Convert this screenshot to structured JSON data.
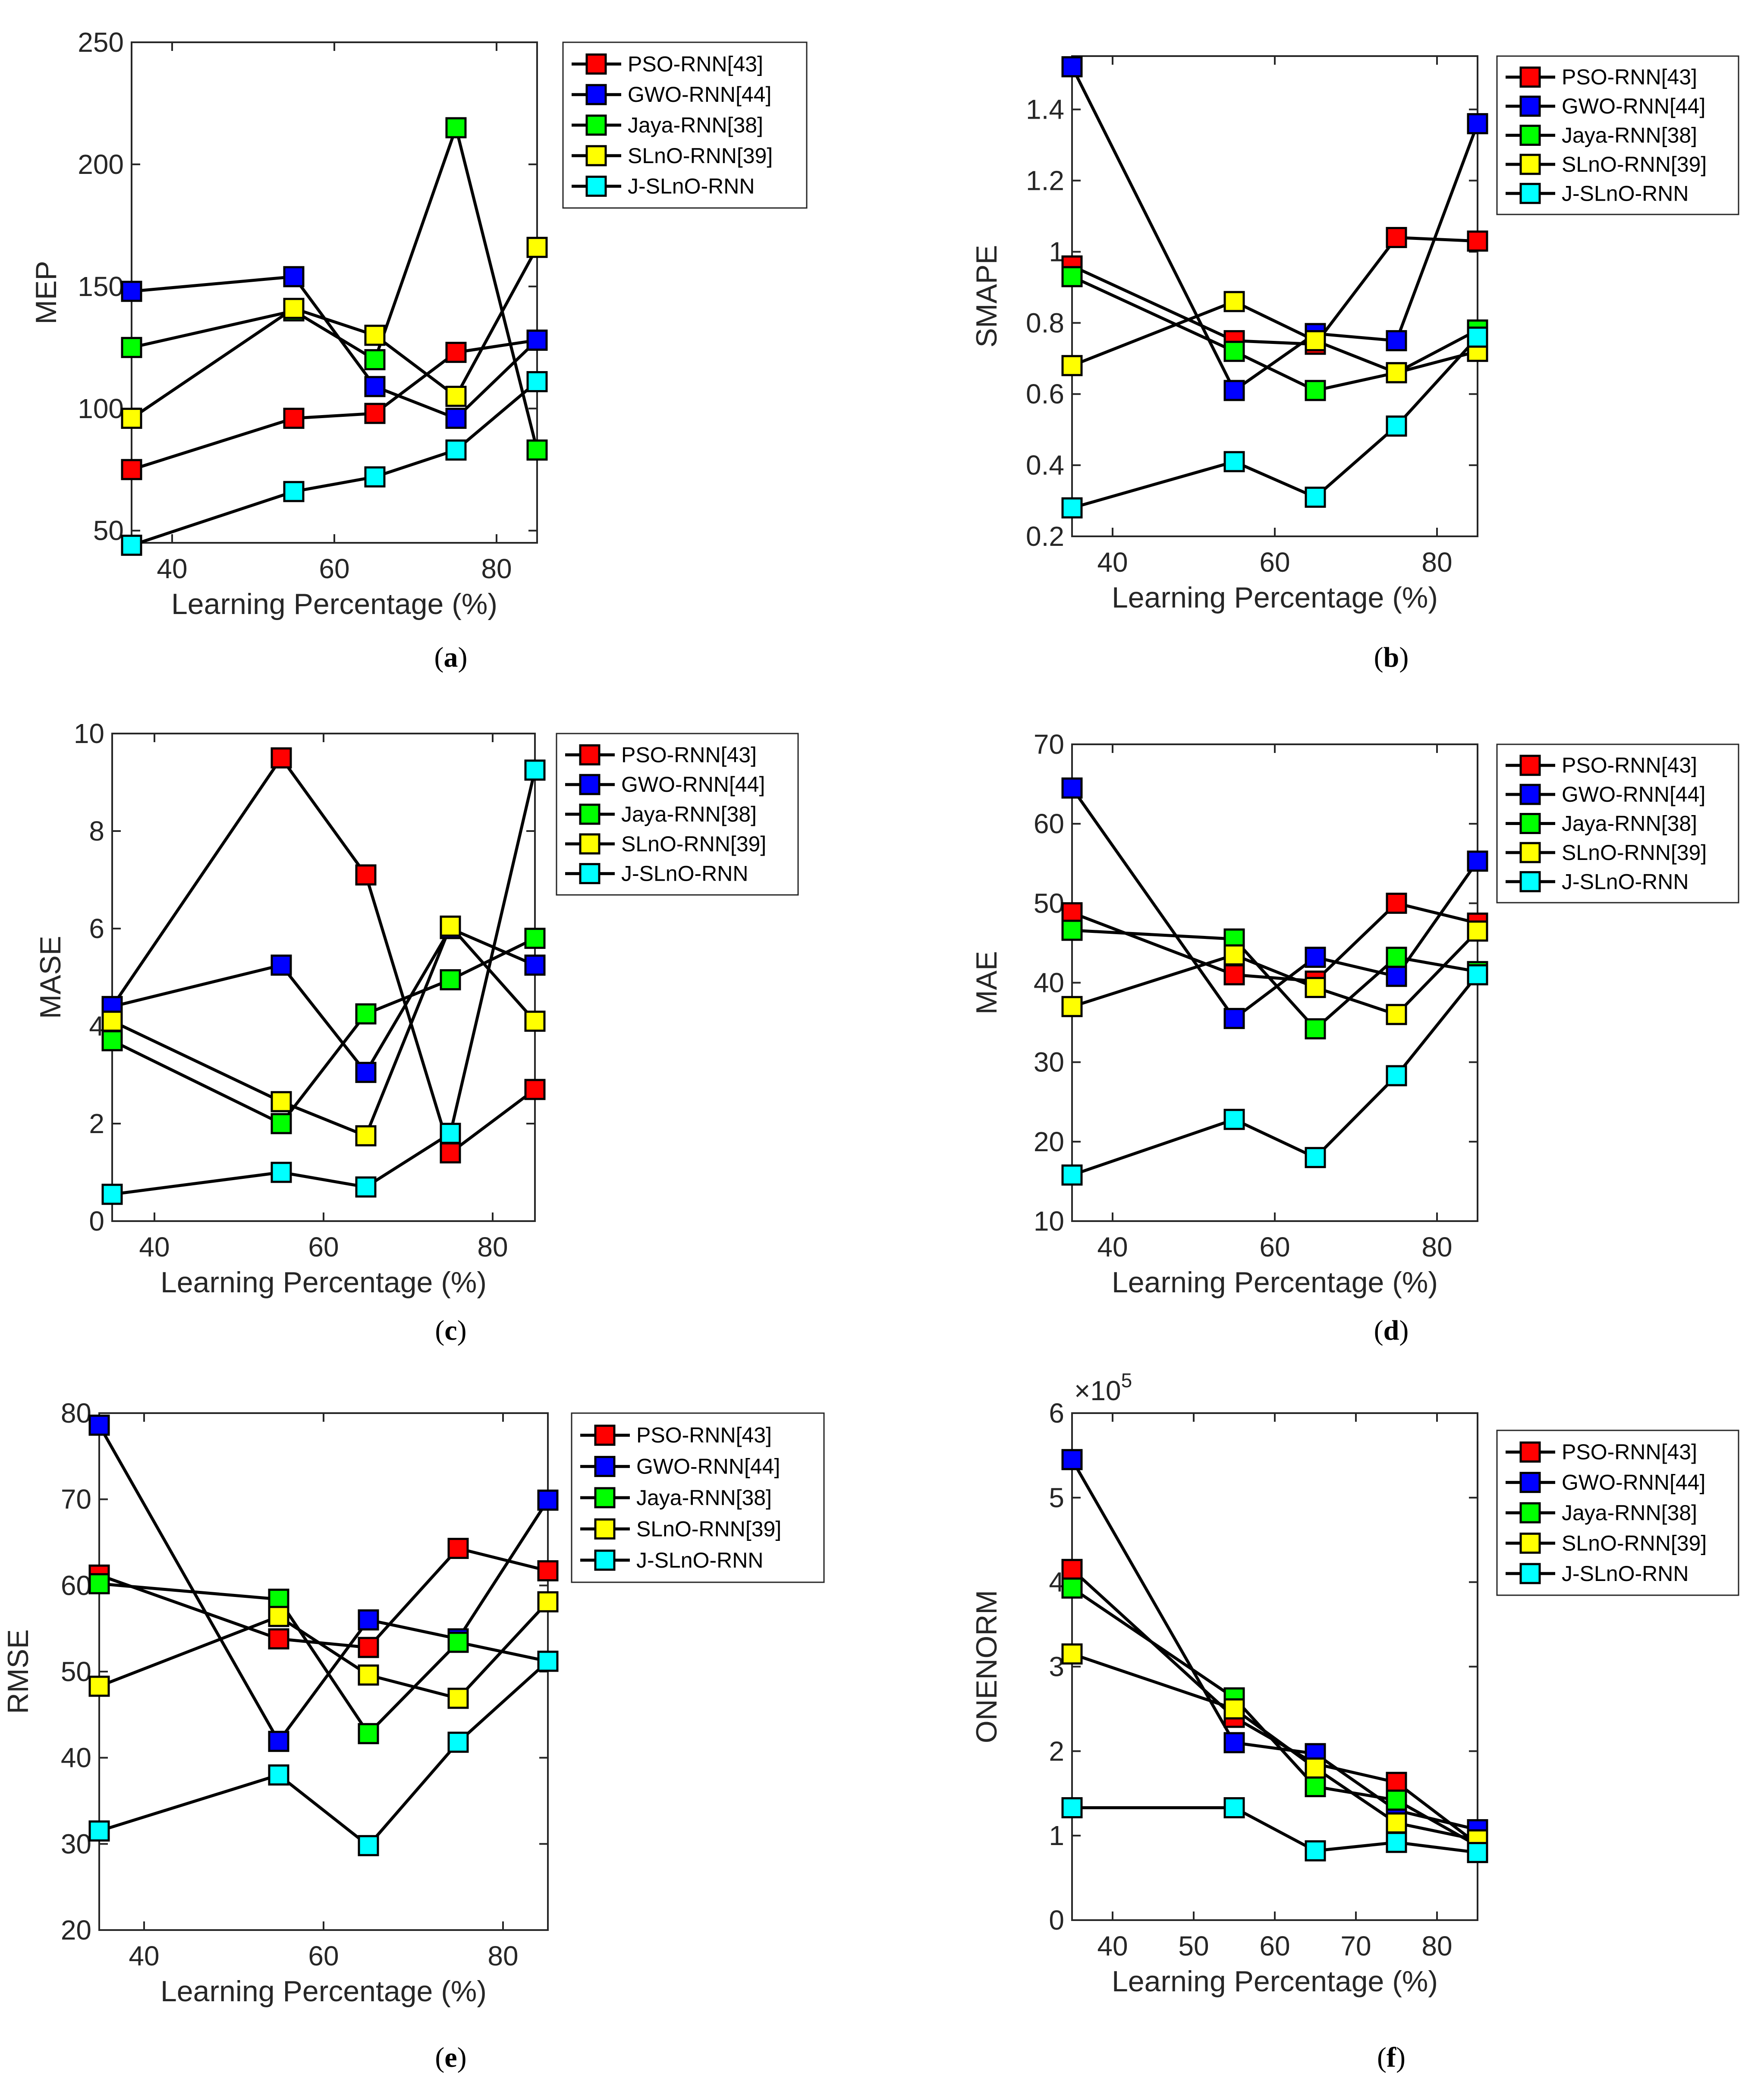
{
  "figure": {
    "series_names": [
      "PSO-RNN[43]",
      "GWO-RNN[44]",
      "Jaya-RNN[38]",
      "SLnO-RNN[39]",
      "J-SLnO-RNN"
    ],
    "series_colors": [
      "#ff0000",
      "#0000ff",
      "#00ff00",
      "#ffff00",
      "#00ffff"
    ]
  },
  "chart_data": [
    {
      "id": "a",
      "type": "line",
      "caption": "a",
      "xlabel": "Learning Percentage (%)",
      "ylabel": "MEP",
      "xlim": [
        35,
        85
      ],
      "ylim": [
        45,
        250
      ],
      "xticks": [
        40,
        60,
        80
      ],
      "yticks": [
        50,
        100,
        150,
        200,
        250
      ],
      "yticklabels": [
        "50",
        "100",
        "150",
        "200",
        "250"
      ],
      "x": [
        35,
        55,
        65,
        75,
        85
      ],
      "series": [
        {
          "name": "PSO-RNN[43]",
          "values": [
            75,
            96,
            98,
            123,
            128
          ]
        },
        {
          "name": "GWO-RNN[44]",
          "values": [
            148,
            154,
            109,
            96,
            128
          ]
        },
        {
          "name": "Jaya-RNN[38]",
          "values": [
            125,
            140,
            120,
            215,
            83
          ]
        },
        {
          "name": "SLnO-RNN[39]",
          "values": [
            96,
            141,
            130,
            105,
            166
          ]
        },
        {
          "name": "J-SLnO-RNN",
          "values": [
            44,
            66,
            72,
            83,
            111
          ]
        }
      ]
    },
    {
      "id": "b",
      "type": "line",
      "caption": "b",
      "xlabel": "Learning Percentage (%)",
      "ylabel": "SMAPE",
      "xlim": [
        35,
        85
      ],
      "ylim": [
        0.2,
        1.55
      ],
      "xticks": [
        40,
        60,
        80
      ],
      "yticks": [
        0.2,
        0.4,
        0.6,
        0.8,
        1.0,
        1.2,
        1.4
      ],
      "yticklabels": [
        "0.2",
        "0.4",
        "0.6",
        "0.8",
        "1",
        "1.2",
        "1.4"
      ],
      "x": [
        35,
        55,
        65,
        75,
        85
      ],
      "series": [
        {
          "name": "PSO-RNN[43]",
          "values": [
            0.96,
            0.75,
            0.74,
            1.04,
            1.03
          ]
        },
        {
          "name": "GWO-RNN[44]",
          "values": [
            1.52,
            0.61,
            0.77,
            0.75,
            1.36
          ]
        },
        {
          "name": "Jaya-RNN[38]",
          "values": [
            0.93,
            0.72,
            0.61,
            0.66,
            0.78
          ]
        },
        {
          "name": "SLnO-RNN[39]",
          "values": [
            0.68,
            0.86,
            0.75,
            0.66,
            0.72
          ]
        },
        {
          "name": "J-SLnO-RNN",
          "values": [
            0.28,
            0.41,
            0.31,
            0.51,
            0.76
          ]
        }
      ]
    },
    {
      "id": "c",
      "type": "line",
      "caption": "c",
      "xlabel": "Learning Percentage (%)",
      "ylabel": "MASE",
      "xlim": [
        35,
        85
      ],
      "ylim": [
        0,
        10
      ],
      "xticks": [
        40,
        60,
        80
      ],
      "yticks": [
        0,
        2,
        4,
        6,
        8,
        10
      ],
      "yticklabels": [
        "0",
        "2",
        "4",
        "6",
        "8",
        "10"
      ],
      "x": [
        35,
        55,
        65,
        75,
        85
      ],
      "series": [
        {
          "name": "PSO-RNN[43]",
          "values": [
            4.4,
            9.5,
            7.1,
            1.4,
            2.7
          ]
        },
        {
          "name": "GWO-RNN[44]",
          "values": [
            4.4,
            5.25,
            3.05,
            6.0,
            5.25
          ]
        },
        {
          "name": "Jaya-RNN[38]",
          "values": [
            3.7,
            2.0,
            4.25,
            4.95,
            5.8
          ]
        },
        {
          "name": "SLnO-RNN[39]",
          "values": [
            4.1,
            2.45,
            1.75,
            6.05,
            4.1
          ]
        },
        {
          "name": "J-SLnO-RNN",
          "values": [
            0.55,
            1.0,
            0.7,
            1.8,
            9.25
          ]
        }
      ]
    },
    {
      "id": "d",
      "type": "line",
      "caption": "d",
      "xlabel": "Learning Percentage (%)",
      "ylabel": "MAE",
      "xlim": [
        35,
        85
      ],
      "ylim": [
        10,
        70
      ],
      "xticks": [
        40,
        60,
        80
      ],
      "yticks": [
        10,
        20,
        30,
        40,
        50,
        60,
        70
      ],
      "yticklabels": [
        "10",
        "20",
        "30",
        "40",
        "50",
        "60",
        "70"
      ],
      "x": [
        35,
        55,
        65,
        75,
        85
      ],
      "series": [
        {
          "name": "PSO-RNN[43]",
          "values": [
            48.8,
            41,
            40.2,
            50,
            47.5
          ]
        },
        {
          "name": "GWO-RNN[44]",
          "values": [
            64.5,
            35.5,
            43.2,
            40.8,
            55.3
          ]
        },
        {
          "name": "Jaya-RNN[38]",
          "values": [
            46.6,
            45.5,
            34.2,
            43.2,
            41.4
          ]
        },
        {
          "name": "SLnO-RNN[39]",
          "values": [
            37,
            43.5,
            39.4,
            36,
            46.5
          ]
        },
        {
          "name": "J-SLnO-RNN",
          "values": [
            15.8,
            22.8,
            18,
            28.3,
            41
          ]
        }
      ]
    },
    {
      "id": "e",
      "type": "line",
      "caption": "e",
      "xlabel": "Learning Percentage (%)",
      "ylabel": "RMSE",
      "xlim": [
        35,
        85
      ],
      "ylim": [
        20,
        80
      ],
      "xticks": [
        40,
        60,
        80
      ],
      "yticks": [
        20,
        30,
        40,
        50,
        60,
        70,
        80
      ],
      "yticklabels": [
        "20",
        "30",
        "40",
        "50",
        "60",
        "70",
        "80"
      ],
      "x": [
        35,
        55,
        65,
        75,
        85
      ],
      "series": [
        {
          "name": "PSO-RNN[43]",
          "values": [
            61.2,
            53.8,
            52.8,
            64.3,
            61.7
          ]
        },
        {
          "name": "GWO-RNN[44]",
          "values": [
            78.6,
            41.9,
            56,
            53.8,
            69.9
          ]
        },
        {
          "name": "Jaya-RNN[38]",
          "values": [
            60.2,
            58.4,
            42.8,
            53.4,
            51.2
          ]
        },
        {
          "name": "SLnO-RNN[39]",
          "values": [
            48.3,
            56.4,
            49.6,
            46.9,
            58.1
          ]
        },
        {
          "name": "J-SLnO-RNN",
          "values": [
            31.5,
            38,
            29.8,
            41.8,
            51.2
          ]
        }
      ]
    },
    {
      "id": "f",
      "type": "line",
      "caption": "f",
      "xlabel": "Learning Percentage (%)",
      "ylabel": "ONENORM",
      "exponent_base": "×10",
      "exponent_power": "5",
      "xlim": [
        35,
        85
      ],
      "ylim": [
        0,
        6
      ],
      "xticks": [
        40,
        50,
        60,
        70,
        80
      ],
      "yticks": [
        0,
        1,
        2,
        3,
        4,
        5,
        6
      ],
      "yticklabels": [
        "0",
        "1",
        "2",
        "3",
        "4",
        "5",
        "6"
      ],
      "x": [
        35,
        55,
        65,
        75,
        85
      ],
      "series": [
        {
          "name": "PSO-RNN[43]",
          "values": [
            4.15,
            2.4,
            1.85,
            1.63,
            0.9
          ]
        },
        {
          "name": "GWO-RNN[44]",
          "values": [
            5.45,
            2.1,
            1.97,
            1.3,
            1.07
          ]
        },
        {
          "name": "Jaya-RNN[38]",
          "values": [
            3.93,
            2.63,
            1.58,
            1.42,
            0.88
          ]
        },
        {
          "name": "SLnO-RNN[39]",
          "values": [
            3.15,
            2.5,
            1.8,
            1.15,
            0.95
          ]
        },
        {
          "name": "J-SLnO-RNN",
          "values": [
            1.33,
            1.33,
            0.82,
            0.92,
            0.8
          ]
        }
      ]
    }
  ]
}
